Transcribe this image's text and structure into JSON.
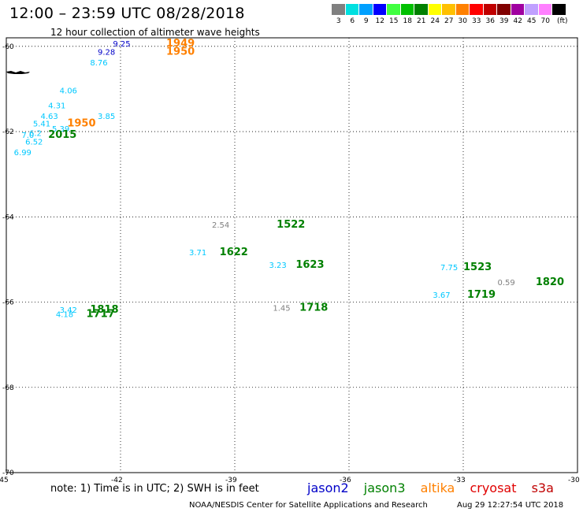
{
  "header": {
    "title": "12:00 – 23:59 UTC 08/28/2018",
    "subtitle": "12 hour collection of altimeter wave heights"
  },
  "colorbar": {
    "colors": [
      "#808080",
      "#00e0e0",
      "#00a0ff",
      "#0000ff",
      "#40ff40",
      "#00c000",
      "#008000",
      "#ffff00",
      "#ffc000",
      "#ff8000",
      "#ff0000",
      "#c00000",
      "#800000",
      "#a000a0",
      "#c0a0ff",
      "#ff80ff",
      "#000000"
    ],
    "labels": [
      "3",
      "6",
      "9",
      "12",
      "15",
      "18",
      "21",
      "24",
      "27",
      "30",
      "33",
      "36",
      "39",
      "42",
      "45",
      "70",
      "(ft)"
    ]
  },
  "map": {
    "lon_ticks": [
      "-45",
      "-42",
      "-39",
      "-36",
      "-33",
      "-30"
    ],
    "lat_ticks": [
      "-60",
      "-62",
      "-64",
      "-66",
      "-68",
      "-70"
    ],
    "lon_range": [
      -45,
      -30
    ],
    "lat_range": [
      -59.8,
      -70
    ]
  },
  "observations": [
    {
      "lon": -40.8,
      "lat": -60.0,
      "text": "1949",
      "color": "#ff8000",
      "kind": "time"
    },
    {
      "lon": -42.2,
      "lat": -60.0,
      "text": "9.25",
      "color": "#0000c8",
      "kind": "swh"
    },
    {
      "lon": -40.8,
      "lat": -60.2,
      "text": "1950",
      "color": "#ff8000",
      "kind": "time"
    },
    {
      "lon": -42.6,
      "lat": -60.2,
      "text": "9.28",
      "color": "#0000c8",
      "kind": "swh"
    },
    {
      "lon": -42.8,
      "lat": -60.45,
      "text": "8.76",
      "color": "#00c8ff",
      "kind": "swh"
    },
    {
      "lon": -43.6,
      "lat": -61.1,
      "text": "4.06",
      "color": "#00c8ff",
      "kind": "swh"
    },
    {
      "lon": -43.9,
      "lat": -61.45,
      "text": "4.31",
      "color": "#00c8ff",
      "kind": "swh"
    },
    {
      "lon": -44.1,
      "lat": -61.7,
      "text": "4.63",
      "color": "#00c8ff",
      "kind": "swh"
    },
    {
      "lon": -42.6,
      "lat": -61.7,
      "text": "3.85",
      "color": "#00c8ff",
      "kind": "swh"
    },
    {
      "lon": -43.4,
      "lat": -61.88,
      "text": "1950",
      "color": "#ff8000",
      "kind": "time"
    },
    {
      "lon": -44.3,
      "lat": -61.88,
      "text": "5.41",
      "color": "#00c8ff",
      "kind": "swh"
    },
    {
      "lon": -43.8,
      "lat": -62.0,
      "text": "5.39",
      "color": "#00c8ff",
      "kind": "swh"
    },
    {
      "lon": -44.4,
      "lat": -62.1,
      "text": "6.2",
      "color": "#00c8ff",
      "kind": "swh"
    },
    {
      "lon": -44.6,
      "lat": -62.15,
      "text": "7.0",
      "color": "#00c8ff",
      "kind": "swh"
    },
    {
      "lon": -43.9,
      "lat": -62.15,
      "text": "2015",
      "color": "#008000",
      "kind": "time"
    },
    {
      "lon": -44.5,
      "lat": -62.3,
      "text": "6.52",
      "color": "#00c8ff",
      "kind": "swh"
    },
    {
      "lon": -44.8,
      "lat": -62.55,
      "text": "6.99",
      "color": "#00c8ff",
      "kind": "swh"
    },
    {
      "lon": -39.6,
      "lat": -64.25,
      "text": "2.54",
      "color": "#808080",
      "kind": "swh"
    },
    {
      "lon": -37.9,
      "lat": -64.25,
      "text": "1522",
      "color": "#008000",
      "kind": "time"
    },
    {
      "lon": -40.2,
      "lat": -64.9,
      "text": "3.71",
      "color": "#00c8ff",
      "kind": "swh"
    },
    {
      "lon": -39.4,
      "lat": -64.9,
      "text": "1622",
      "color": "#008000",
      "kind": "time"
    },
    {
      "lon": -38.1,
      "lat": -65.2,
      "text": "3.23",
      "color": "#00c8ff",
      "kind": "swh"
    },
    {
      "lon": -37.4,
      "lat": -65.2,
      "text": "1623",
      "color": "#008000",
      "kind": "time"
    },
    {
      "lon": -33.6,
      "lat": -65.25,
      "text": "7.75",
      "color": "#00c8ff",
      "kind": "swh"
    },
    {
      "lon": -33.0,
      "lat": -65.25,
      "text": "1523",
      "color": "#008000",
      "kind": "time"
    },
    {
      "lon": -32.1,
      "lat": -65.6,
      "text": "0.59",
      "color": "#808080",
      "kind": "swh"
    },
    {
      "lon": -31.1,
      "lat": -65.6,
      "text": "1820",
      "color": "#008000",
      "kind": "time"
    },
    {
      "lon": -33.8,
      "lat": -65.9,
      "text": "3.67",
      "color": "#00c8ff",
      "kind": "swh"
    },
    {
      "lon": -32.9,
      "lat": -65.9,
      "text": "1719",
      "color": "#008000",
      "kind": "time"
    },
    {
      "lon": -38.0,
      "lat": -66.2,
      "text": "1.45",
      "color": "#808080",
      "kind": "swh"
    },
    {
      "lon": -37.3,
      "lat": -66.2,
      "text": "1718",
      "color": "#008000",
      "kind": "time"
    },
    {
      "lon": -43.6,
      "lat": -66.25,
      "text": "3.42",
      "color": "#00c8ff",
      "kind": "swh"
    },
    {
      "lon": -42.8,
      "lat": -66.25,
      "text": "1818",
      "color": "#008000",
      "kind": "time"
    },
    {
      "lon": -43.7,
      "lat": -66.35,
      "text": "4.18",
      "color": "#00c8ff",
      "kind": "swh"
    },
    {
      "lon": -42.9,
      "lat": -66.35,
      "text": "1717",
      "color": "#008000",
      "kind": "time"
    }
  ],
  "note": "note:  1) Time is in UTC;  2) SWH is in feet",
  "legend": [
    {
      "name": "jason2",
      "color": "#0000c8"
    },
    {
      "name": "jason3",
      "color": "#008000"
    },
    {
      "name": "altika",
      "color": "#ff8000"
    },
    {
      "name": "cryosat",
      "color": "#e00000"
    },
    {
      "name": "s3a",
      "color": "#c00000"
    }
  ],
  "footer": {
    "source": "NOAA/NESDIS Center for Satellite Applications and Research",
    "timestamp": "Aug 29 12:27:54 UTC 2018"
  }
}
